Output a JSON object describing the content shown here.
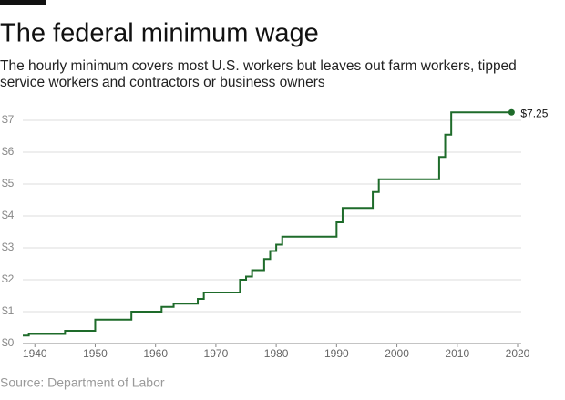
{
  "chart_data": {
    "type": "step-line",
    "title": "The federal minimum wage",
    "subtitle": "The hourly minimum covers most U.S. workers but leaves out farm workers, tipped service workers and contractors or business owners",
    "source": "Source: Department of Labor",
    "x": [
      1938,
      1939,
      1945,
      1950,
      1956,
      1961,
      1963,
      1967,
      1968,
      1974,
      1975,
      1976,
      1978,
      1979,
      1980,
      1981,
      1990,
      1991,
      1996,
      1997,
      2007,
      2008,
      2009,
      2019
    ],
    "series": [
      {
        "color": "#1e6b2a",
        "values": [
          0.25,
          0.3,
          0.4,
          0.75,
          1.0,
          1.15,
          1.25,
          1.4,
          1.6,
          2.0,
          2.1,
          2.3,
          2.65,
          2.9,
          3.1,
          3.35,
          3.8,
          4.25,
          4.75,
          5.15,
          5.85,
          6.55,
          7.25,
          7.25
        ],
        "value_labels": [
          null,
          null,
          null,
          null,
          null,
          null,
          null,
          null,
          null,
          null,
          null,
          null,
          null,
          null,
          null,
          null,
          null,
          null,
          null,
          null,
          null,
          null,
          null,
          "$7.25"
        ]
      }
    ],
    "xlim": [
      1938,
      2020
    ],
    "xticks": [
      1940,
      1950,
      1960,
      1970,
      1980,
      1990,
      2000,
      2010,
      2020
    ],
    "ylim": [
      0,
      7
    ],
    "yticks": [
      {
        "value": 0,
        "label": "$0"
      },
      {
        "value": 1,
        "label": "$1"
      },
      {
        "value": 2,
        "label": "$2"
      },
      {
        "value": 3,
        "label": "$3"
      },
      {
        "value": 4,
        "label": "$4"
      },
      {
        "value": 5,
        "label": "$5"
      },
      {
        "value": 6,
        "label": "$6"
      },
      {
        "value": 7,
        "label": "$7"
      }
    ],
    "grid": true
  }
}
